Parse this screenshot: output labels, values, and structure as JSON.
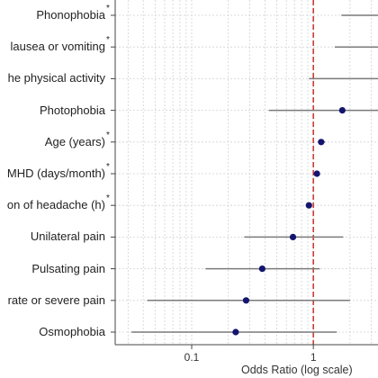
{
  "chart_data": {
    "type": "scatter",
    "xlabel": "Odds Ratio (log scale)",
    "x_scale": "log",
    "xlim": [
      0.0235,
      3.4
    ],
    "x_ticks": [
      "0.1",
      "1"
    ],
    "grid": true,
    "reference_line": {
      "x": 1,
      "color": "#c8302a",
      "style": "dashed"
    },
    "point_color": "#141470",
    "ci_color": "#7a7a7a",
    "rows": [
      {
        "label": "Phonophobia",
        "note": "*",
        "or": null,
        "ci_low": 1.7,
        "ci_high": null
      },
      {
        "label": "lausea or vomiting",
        "note": "*",
        "or": null,
        "ci_low": 1.5,
        "ci_high": null
      },
      {
        "label": "he physical activity",
        "note": "",
        "or": null,
        "ci_low": 0.92,
        "ci_high": null
      },
      {
        "label": "Photophobia",
        "note": "",
        "or": 1.73,
        "ci_low": 0.43,
        "ci_high": null
      },
      {
        "label": "Age (years)",
        "note": "*",
        "or": 1.16,
        "ci_low": 1.09,
        "ci_high": 1.25
      },
      {
        "label": "MHD (days/month)",
        "note": "*",
        "or": 1.07,
        "ci_low": 1.03,
        "ci_high": 1.12
      },
      {
        "label": "on of headache (h)",
        "note": "*",
        "or": 0.92,
        "ci_low": 0.88,
        "ci_high": 0.96
      },
      {
        "label": "Unilateral pain",
        "note": "",
        "or": 0.68,
        "ci_low": 0.27,
        "ci_high": 1.76
      },
      {
        "label": "Pulsating pain",
        "note": "",
        "or": 0.38,
        "ci_low": 0.13,
        "ci_high": 1.13
      },
      {
        "label": "rate or severe pain",
        "note": "",
        "or": 0.28,
        "ci_low": 0.043,
        "ci_high": 2.0
      },
      {
        "label": "Osmophobia",
        "note": "",
        "or": 0.23,
        "ci_low": 0.032,
        "ci_high": 1.56
      }
    ]
  }
}
